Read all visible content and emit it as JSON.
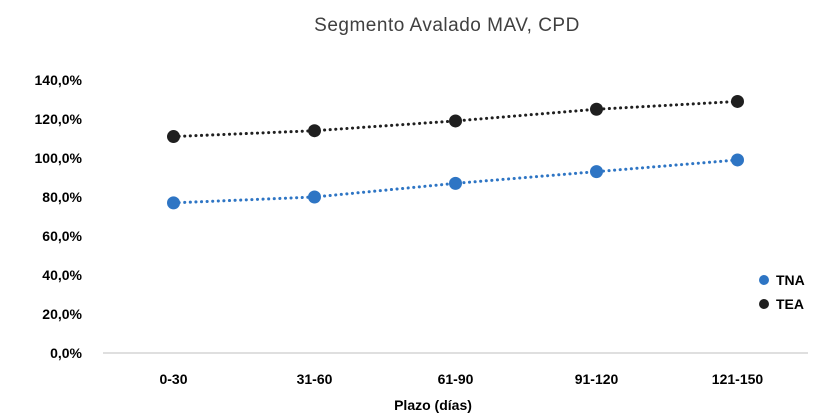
{
  "chart_data": {
    "type": "line",
    "title": "Segmento Avalado MAV, CPD",
    "xlabel": "Plazo (días)",
    "ylabel": "",
    "categories": [
      "0-30",
      "31-60",
      "61-90",
      "91-120",
      "121-150"
    ],
    "ylim": [
      0,
      140
    ],
    "yticks": [
      0,
      20,
      40,
      60,
      80,
      100,
      120,
      140
    ],
    "ytick_labels": [
      "0,0%",
      "20,0%",
      "40,0%",
      "60,0%",
      "80,0%",
      "100,0%",
      "120,0%",
      "140,0%"
    ],
    "grid": false,
    "legend_position": "right",
    "series": [
      {
        "name": "TNA",
        "values": [
          77,
          80,
          87,
          93,
          99
        ],
        "color": "#2e75c4"
      },
      {
        "name": "TEA",
        "values": [
          111,
          114,
          119,
          125,
          129
        ],
        "color": "#1f1f1f"
      }
    ]
  }
}
